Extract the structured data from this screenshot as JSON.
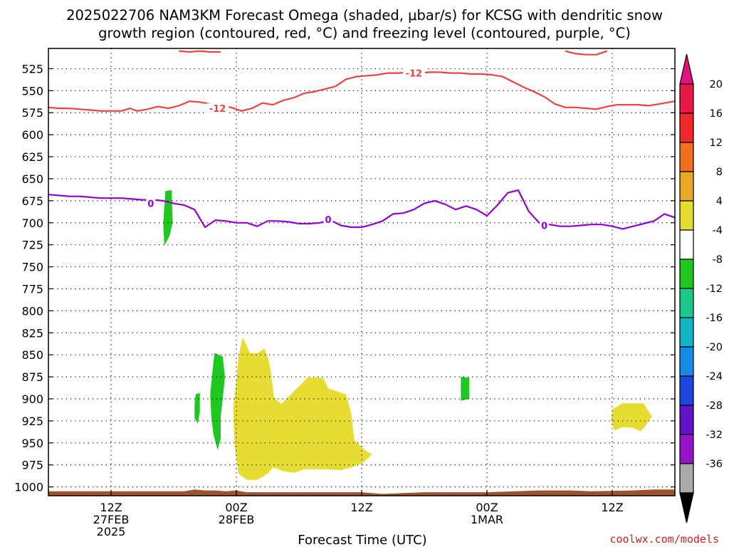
{
  "title": {
    "line1": "2025022706 NAM3KM Forecast Omega (shaded, μbar/s) for KCSG with dendritic snow",
    "line2": "growth region (contoured, red, °C) and freezing level (contoured, purple, °C)"
  },
  "credit": "coolwx.com/models",
  "chart_data": {
    "type": "time-height cross-section",
    "title": "2025022706 NAM3KM Forecast Omega (shaded, μbar/s) for KCSG with dendritic snow growth region (contoured, red, °C) and freezing level (contoured, purple, °C)",
    "xlabel": "Forecast Time (UTC)",
    "ylabel": "",
    "x_unit": "hours from 2025-02-27 06Z",
    "xlim": [
      0,
      60
    ],
    "ylim": [
      1010,
      502
    ],
    "y_ticks": [
      525,
      550,
      575,
      600,
      625,
      650,
      675,
      700,
      725,
      750,
      775,
      800,
      825,
      850,
      875,
      900,
      925,
      950,
      975,
      1000
    ],
    "x_ticks": [
      {
        "x": 6,
        "line1": "12Z",
        "line2": "27FEB",
        "line3": "2025"
      },
      {
        "x": 18,
        "line1": "00Z",
        "line2": "28FEB",
        "line3": ""
      },
      {
        "x": 30,
        "line1": "12Z",
        "line2": "",
        "line3": ""
      },
      {
        "x": 42,
        "line1": "00Z",
        "line2": "1MAR",
        "line3": ""
      },
      {
        "x": 54,
        "line1": "12Z",
        "line2": "",
        "line3": ""
      }
    ],
    "grid": "dotted",
    "colorbar": {
      "labels": [
        "20",
        "16",
        "12",
        "8",
        "4",
        "-4",
        "-8",
        "-12",
        "-16",
        "-20",
        "-24",
        "-28",
        "-32",
        "-36"
      ],
      "colors": [
        "#e8184a",
        "#f0282a",
        "#f07020",
        "#e8a828",
        "#e6dc32",
        "#ffffff",
        "#1ec81e",
        "#1ec88c",
        "#14b4c8",
        "#148ce6",
        "#1e46dc",
        "#6414c8",
        "#9614c8",
        "#aaaaaa"
      ],
      "top_arrow_color": "#e0147c",
      "bottom_arrow_color": "#000000"
    },
    "contours": [
      {
        "name": "dendritic snow growth -12°C",
        "value": -12,
        "label": "-12",
        "color": "#f04040",
        "label_positions": [
          [
            16.2,
            570
          ],
          [
            35.0,
            530
          ]
        ],
        "points": [
          [
            0,
            569
          ],
          [
            1,
            570
          ],
          [
            2,
            570
          ],
          [
            3,
            571
          ],
          [
            4,
            572
          ],
          [
            5,
            573
          ],
          [
            6,
            573
          ],
          [
            7,
            573
          ],
          [
            7.8,
            570
          ],
          [
            8.5,
            573
          ],
          [
            9.5,
            571
          ],
          [
            10.5,
            568
          ],
          [
            11.5,
            570
          ],
          [
            12.5,
            567
          ],
          [
            13.5,
            562
          ],
          [
            14.5,
            563
          ],
          [
            15.5,
            565
          ],
          [
            16.5,
            567
          ],
          [
            17.5,
            569
          ],
          [
            18.5,
            573
          ],
          [
            19.5,
            570
          ],
          [
            20.5,
            564
          ],
          [
            21.5,
            566
          ],
          [
            22.5,
            561
          ],
          [
            23.5,
            558
          ],
          [
            24.5,
            553
          ],
          [
            25.5,
            551
          ],
          [
            26.5,
            548
          ],
          [
            27.5,
            545
          ],
          [
            28.5,
            537
          ],
          [
            29.5,
            534
          ],
          [
            30.5,
            533
          ],
          [
            31.5,
            532
          ],
          [
            32.5,
            530
          ],
          [
            33.5,
            530
          ],
          [
            34.5,
            529
          ],
          [
            35.5,
            530
          ],
          [
            36.5,
            529
          ],
          [
            37.5,
            529
          ],
          [
            38.5,
            530
          ],
          [
            39.5,
            530
          ],
          [
            40.5,
            531
          ],
          [
            41.5,
            531
          ],
          [
            42.5,
            532
          ],
          [
            43.5,
            534
          ],
          [
            44.5,
            540
          ],
          [
            45.5,
            546
          ],
          [
            46.5,
            551
          ],
          [
            47.5,
            557
          ],
          [
            48.5,
            565
          ],
          [
            49.5,
            569
          ],
          [
            50.5,
            569
          ],
          [
            51.5,
            570
          ],
          [
            52.5,
            571
          ],
          [
            53.5,
            568
          ],
          [
            54.5,
            566
          ],
          [
            55.5,
            566
          ],
          [
            56.5,
            566
          ],
          [
            57.5,
            567
          ],
          [
            58.5,
            565
          ],
          [
            59.5,
            563
          ],
          [
            60,
            562
          ]
        ]
      },
      {
        "name": "dendritic snow growth -12°C (upper)",
        "value": -12,
        "label": "",
        "color": "#f04040",
        "label_positions": [],
        "points": [
          [
            12.5,
            505
          ],
          [
            13.5,
            506
          ],
          [
            14.5,
            505
          ],
          [
            15.5,
            506
          ],
          [
            16.5,
            506
          ]
        ]
      },
      {
        "name": "dendritic snow growth -12°C (upper right)",
        "value": -12,
        "label": "",
        "color": "#f04040",
        "label_positions": [],
        "points": [
          [
            49.5,
            505
          ],
          [
            50.5,
            508
          ],
          [
            51.5,
            509
          ],
          [
            52.5,
            509
          ],
          [
            53.5,
            505
          ]
        ]
      },
      {
        "name": "freezing level 0°C",
        "value": 0,
        "label": "0",
        "color": "#9400d3",
        "label_positions": [
          [
            9.8,
            678
          ],
          [
            26.8,
            696
          ],
          [
            47.5,
            703
          ]
        ],
        "points": [
          [
            0,
            668
          ],
          [
            1,
            669
          ],
          [
            2,
            670
          ],
          [
            3,
            670
          ],
          [
            4,
            671
          ],
          [
            5,
            672
          ],
          [
            6,
            672
          ],
          [
            7,
            672
          ],
          [
            8,
            673
          ],
          [
            9,
            674
          ],
          [
            10,
            674
          ],
          [
            11,
            675
          ],
          [
            12,
            678
          ],
          [
            13,
            680
          ],
          [
            14,
            685
          ],
          [
            15,
            705
          ],
          [
            16,
            697
          ],
          [
            17,
            698
          ],
          [
            18,
            700
          ],
          [
            19,
            700
          ],
          [
            20,
            704
          ],
          [
            21,
            698
          ],
          [
            22,
            698
          ],
          [
            23,
            699
          ],
          [
            24,
            701
          ],
          [
            25,
            701
          ],
          [
            26,
            700
          ],
          [
            27,
            697
          ],
          [
            28,
            703
          ],
          [
            29,
            705
          ],
          [
            30,
            705
          ],
          [
            31,
            702
          ],
          [
            32,
            698
          ],
          [
            33,
            690
          ],
          [
            34,
            689
          ],
          [
            35,
            685
          ],
          [
            36,
            678
          ],
          [
            37,
            675
          ],
          [
            38,
            679
          ],
          [
            39,
            685
          ],
          [
            40,
            681
          ],
          [
            41,
            685
          ],
          [
            42,
            692
          ],
          [
            43,
            680
          ],
          [
            44,
            666
          ],
          [
            45,
            663
          ],
          [
            46,
            687
          ],
          [
            47,
            700
          ],
          [
            48,
            702
          ],
          [
            49,
            704
          ],
          [
            50,
            704
          ],
          [
            51,
            703
          ],
          [
            52,
            702
          ],
          [
            53,
            702
          ],
          [
            54,
            704
          ],
          [
            55,
            707
          ],
          [
            56,
            704
          ],
          [
            57,
            701
          ],
          [
            58,
            698
          ],
          [
            59,
            690
          ],
          [
            60,
            694
          ]
        ]
      }
    ],
    "shaded_regions": [
      {
        "range": [
          -8,
          -4
        ],
        "color": "#1ec81e",
        "points": [
          [
            11.2,
            664
          ],
          [
            11.8,
            663
          ],
          [
            11.9,
            700
          ],
          [
            11.6,
            715
          ],
          [
            11.1,
            726
          ],
          [
            11.0,
            700
          ]
        ]
      },
      {
        "range": [
          -8,
          -4
        ],
        "color": "#1ec81e",
        "points": [
          [
            15.9,
            848
          ],
          [
            16.7,
            852
          ],
          [
            16.9,
            875
          ],
          [
            16.7,
            900
          ],
          [
            16.5,
            920
          ],
          [
            16.5,
            945
          ],
          [
            16.2,
            958
          ],
          [
            15.8,
            940
          ],
          [
            15.6,
            920
          ],
          [
            15.5,
            895
          ],
          [
            15.7,
            870
          ]
        ]
      },
      {
        "range": [
          -8,
          -4
        ],
        "color": "#1ec81e",
        "points": [
          [
            14.1,
            895
          ],
          [
            14.5,
            893
          ],
          [
            14.5,
            915
          ],
          [
            14.3,
            928
          ],
          [
            14.0,
            922
          ],
          [
            14.0,
            905
          ]
        ]
      },
      {
        "range": [
          -8,
          -4
        ],
        "color": "#1ec81e",
        "points": [
          [
            39.5,
            875
          ],
          [
            40.3,
            876
          ],
          [
            40.3,
            900
          ],
          [
            39.5,
            902
          ]
        ]
      },
      {
        "range": [
          4,
          8
        ],
        "color": "#e6dc32",
        "points": [
          [
            18.2,
            853
          ],
          [
            18.6,
            830
          ],
          [
            19.0,
            840
          ],
          [
            19.3,
            848
          ],
          [
            20.0,
            848
          ],
          [
            20.7,
            843
          ],
          [
            21.0,
            852
          ],
          [
            21.3,
            868
          ],
          [
            21.6,
            898
          ],
          [
            22.3,
            906
          ],
          [
            22.8,
            900
          ],
          [
            23.8,
            888
          ],
          [
            24.8,
            876
          ],
          [
            26.3,
            876
          ],
          [
            26.8,
            888
          ],
          [
            28.5,
            895
          ],
          [
            29.0,
            916
          ],
          [
            29.3,
            947
          ],
          [
            30.5,
            960
          ],
          [
            31.0,
            963
          ],
          [
            30.2,
            972
          ],
          [
            29.0,
            978
          ],
          [
            28.0,
            981
          ],
          [
            26.5,
            980
          ],
          [
            24.5,
            980
          ],
          [
            23.5,
            984
          ],
          [
            22.5,
            982
          ],
          [
            21.5,
            978
          ],
          [
            21.0,
            985
          ],
          [
            20.0,
            992
          ],
          [
            19.0,
            992
          ],
          [
            18.2,
            985
          ],
          [
            17.8,
            950
          ],
          [
            17.7,
            910
          ],
          [
            18.0,
            880
          ]
        ]
      },
      {
        "range": [
          4,
          8
        ],
        "color": "#e6dc32",
        "points": [
          [
            54.0,
            912
          ],
          [
            55.0,
            905
          ],
          [
            57.0,
            905
          ],
          [
            57.8,
            920
          ],
          [
            57.1,
            932
          ],
          [
            56.7,
            937
          ],
          [
            56.0,
            933
          ],
          [
            55.0,
            932
          ],
          [
            54.2,
            936
          ],
          [
            53.9,
            925
          ]
        ]
      }
    ],
    "terrain": {
      "color": "#a0522d",
      "top_points": [
        [
          0,
          1005
        ],
        [
          10,
          1005
        ],
        [
          13,
          1005
        ],
        [
          14,
          1003
        ],
        [
          15,
          1004
        ],
        [
          16,
          1004
        ],
        [
          17,
          1005
        ],
        [
          18,
          1004
        ],
        [
          19,
          1006
        ],
        [
          20,
          1006
        ],
        [
          30,
          1006
        ],
        [
          32,
          1008
        ],
        [
          34,
          1007
        ],
        [
          36,
          1006
        ],
        [
          42,
          1006
        ],
        [
          47,
          1004
        ],
        [
          50,
          1004
        ],
        [
          52,
          1005
        ],
        [
          56,
          1004
        ],
        [
          58,
          1003
        ],
        [
          60,
          1003
        ]
      ],
      "bottom_points": [
        [
          0,
          1010
        ],
        [
          60,
          1010
        ]
      ]
    }
  }
}
